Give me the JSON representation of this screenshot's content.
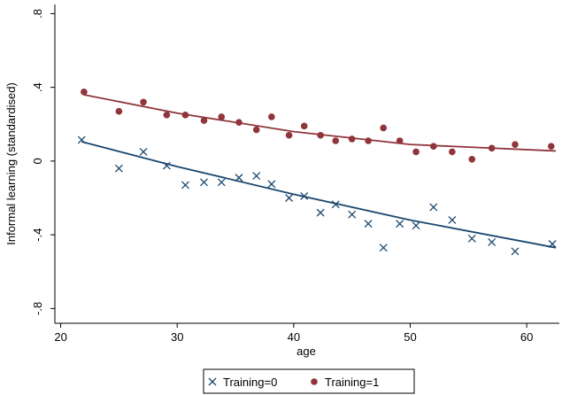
{
  "chart_data": {
    "type": "scatter",
    "x_label": "age",
    "y_label": "Informal learning (standardised)",
    "xlim": [
      19.5,
      62.8
    ],
    "ylim": [
      -0.88,
      0.85
    ],
    "xticks": [
      20,
      30,
      40,
      50,
      60
    ],
    "yticks": [
      {
        "value": 0.8,
        "label": ".8"
      },
      {
        "value": 0.4,
        "label": ".4"
      },
      0,
      {
        "value": -0.4,
        "label": "-.4"
      },
      {
        "value": -0.8,
        "label": "-.8"
      }
    ],
    "grid": false,
    "legend": "bottom",
    "series": [
      {
        "name": "Training=0",
        "marker": "x",
        "color": "#1a476f",
        "x": [
          21.8,
          25.0,
          27.1,
          29.1,
          30.7,
          32.3,
          33.8,
          35.3,
          36.8,
          38.1,
          39.6,
          40.9,
          42.3,
          43.6,
          45.0,
          46.4,
          47.7,
          49.1,
          50.5,
          52.0,
          53.6,
          55.3,
          57.0,
          59.0,
          62.2
        ],
        "values": [
          0.115,
          -0.04,
          0.05,
          -0.025,
          -0.13,
          -0.115,
          -0.115,
          -0.09,
          -0.08,
          -0.125,
          -0.2,
          -0.19,
          -0.28,
          -0.235,
          -0.29,
          -0.34,
          -0.47,
          -0.34,
          -0.35,
          -0.25,
          -0.32,
          -0.42,
          -0.44,
          -0.49,
          -0.45
        ],
        "fit": {
          "x": [
            21.8,
            30,
            40,
            50,
            62.5
          ],
          "values": [
            0.105,
            -0.03,
            -0.18,
            -0.32,
            -0.47
          ]
        }
      },
      {
        "name": "Training=1",
        "marker": "circle",
        "color": "#90353b",
        "x": [
          22.0,
          25.0,
          27.1,
          29.1,
          30.7,
          32.3,
          33.8,
          35.3,
          36.8,
          38.1,
          39.6,
          40.9,
          42.3,
          43.6,
          45.0,
          46.4,
          47.7,
          49.1,
          50.5,
          52.0,
          53.6,
          55.3,
          57.0,
          59.0,
          62.1
        ],
        "values": [
          0.375,
          0.27,
          0.32,
          0.25,
          0.25,
          0.22,
          0.24,
          0.21,
          0.17,
          0.24,
          0.14,
          0.19,
          0.14,
          0.11,
          0.12,
          0.11,
          0.18,
          0.11,
          0.05,
          0.08,
          0.05,
          0.01,
          0.07,
          0.09,
          0.08
        ],
        "fit": {
          "x": [
            22.0,
            30,
            40,
            50,
            62.5
          ],
          "values": [
            0.36,
            0.26,
            0.16,
            0.09,
            0.055
          ]
        }
      }
    ]
  }
}
